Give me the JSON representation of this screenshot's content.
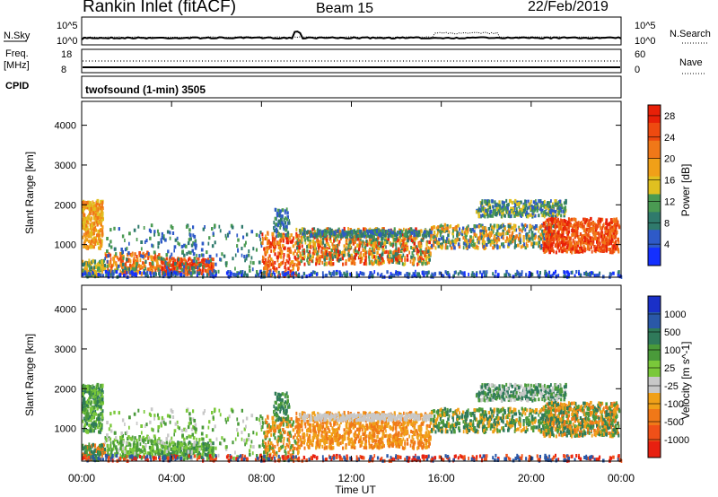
{
  "header": {
    "station": "Rankin Inlet (fitACF)",
    "beam": "Beam 15",
    "date": "22/Feb/2019"
  },
  "strips": {
    "nsky_label": "N.Sky",
    "nsearch_label": "N.Search",
    "noise_left_ticks": [
      "10^5",
      "10^0"
    ],
    "noise_right_ticks": [
      "10^5",
      "10^0"
    ],
    "freq_label_line1": "Freq.",
    "freq_label_line2": "[MHz]",
    "freq_ticks": [
      "18",
      "8"
    ],
    "nave_label": "Nave",
    "nave_ticks": [
      "60",
      "0"
    ],
    "cpid_label": "CPID",
    "cpid_value": "twofsound (1-min) 3505"
  },
  "chart_data": [
    {
      "type": "heatmap",
      "title": "",
      "ylabel": "Slant Range [km]",
      "xlabel": "",
      "y_ticks": [
        "1000",
        "2000",
        "3000",
        "4000"
      ],
      "ylim": [
        180,
        4600
      ],
      "x_hours": [
        0,
        24
      ],
      "colorbar": {
        "label": "Power [dB]",
        "ticks": [
          "4",
          "8",
          "12",
          "16",
          "20",
          "24",
          "28"
        ],
        "range": [
          0,
          30
        ],
        "colors": [
          "#1430ff",
          "#2e5ac8",
          "#2f7a6c",
          "#4a9a52",
          "#e0c020",
          "#f0a018",
          "#f07818",
          "#ee4a10",
          "#e82008"
        ]
      }
    },
    {
      "type": "heatmap",
      "title": "",
      "ylabel": "Slant Range [km]",
      "xlabel": "Time UT",
      "x_ticks": [
        "00:00",
        "04:00",
        "08:00",
        "12:00",
        "16:00",
        "20:00",
        "00:00"
      ],
      "y_ticks": [
        "1000",
        "2000",
        "3000",
        "4000"
      ],
      "ylim": [
        180,
        4600
      ],
      "x_hours": [
        0,
        24
      ],
      "colorbar": {
        "label": "Velocity [m s^-1]",
        "ticks": [
          "1000",
          "500",
          "100",
          "25",
          "-25",
          "-100",
          "-500",
          "-1000"
        ],
        "colors": [
          "#1a30c8",
          "#2a58a8",
          "#2f7a5a",
          "#4a9a3a",
          "#7ac83a",
          "#c8c8c8",
          "#f0a018",
          "#f07818",
          "#f05018",
          "#e82010"
        ]
      }
    }
  ]
}
